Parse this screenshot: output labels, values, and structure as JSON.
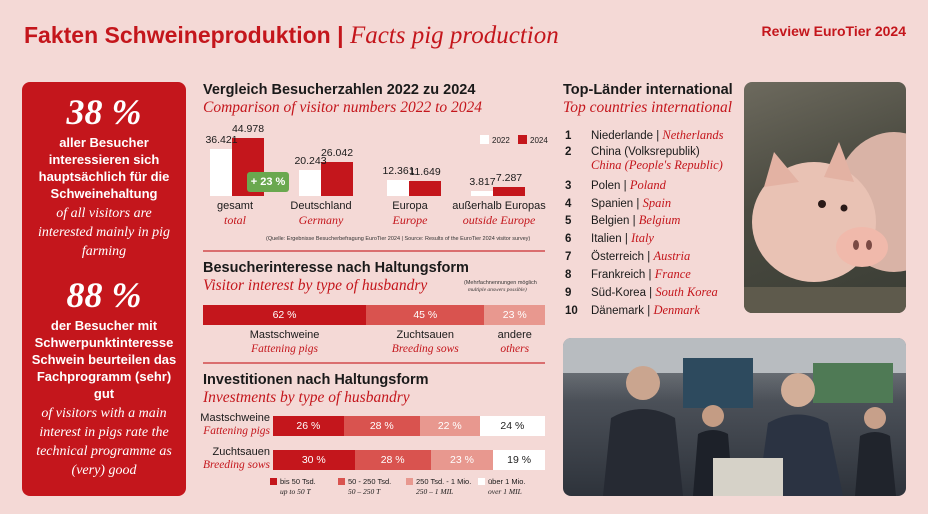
{
  "header": {
    "title_de": "Fakten Schweineproduktion",
    "title_sep": "|",
    "title_en": "Facts pig production",
    "review": "Review EuroTier 2024"
  },
  "left_box": {
    "stat1": {
      "value": "38 %",
      "text_de": "aller Besucher interessieren sich hauptsächlich für die Schweinehaltung",
      "text_en": "of all visitors are interested mainly in pig farming"
    },
    "stat2": {
      "value": "88 %",
      "text_de": "der Besucher mit Schwerpunktinteresse Schwein beurteilen das Fachprogramm (sehr) gut",
      "text_en": "of visitors with a main interest in pigs rate the technical programme as (very) good"
    }
  },
  "visitors": {
    "title_de": "Vergleich Besucherzahlen 2022 zu 2024",
    "title_en": "Comparison of visitor numbers 2022 to 2024",
    "legend": [
      "2022",
      "2024"
    ],
    "badge": "+ 23 %",
    "source": "(Quelle: Ergebnisse Besucherbefragung EuroTier 2024 | Source: Results of the EuroTier 2024 visitor survey)",
    "groups": [
      {
        "label_de": "gesamt",
        "label_en": "total",
        "v2022": "36.421",
        "v2024": "44.978"
      },
      {
        "label_de": "Deutschland",
        "label_en": "Germany",
        "v2022": "20.243",
        "v2024": "26.042"
      },
      {
        "label_de": "Europa",
        "label_en": "Europe",
        "v2022": "12.361",
        "v2024": "11.649"
      },
      {
        "label_de": "außerhalb Europas",
        "label_en": "outside Europe",
        "v2022": "3.817",
        "v2024": "7.287"
      }
    ]
  },
  "chart_data": [
    {
      "type": "bar",
      "title": "Vergleich Besucherzahlen 2022 zu 2024",
      "categories": [
        "gesamt",
        "Deutschland",
        "Europa",
        "außerhalb Europas"
      ],
      "series": [
        {
          "name": "2022",
          "values": [
            36421,
            20243,
            12361,
            3817
          ]
        },
        {
          "name": "2024",
          "values": [
            44978,
            26042,
            11649,
            7287
          ]
        }
      ]
    },
    {
      "type": "bar",
      "title": "Besucherinteresse nach Haltungsform",
      "categories": [
        "Mastschweine",
        "Zuchtsauen",
        "andere"
      ],
      "values": [
        62,
        45,
        23
      ]
    },
    {
      "type": "bar",
      "title": "Investitionen nach Haltungsform",
      "categories": [
        "Mastschweine",
        "Zuchtsauen"
      ],
      "series": [
        {
          "name": "bis 50 Tsd.",
          "values": [
            26,
            30
          ]
        },
        {
          "name": "50 - 250 Tsd.",
          "values": [
            28,
            28
          ]
        },
        {
          "name": "250 Tsd. - 1 Mio.",
          "values": [
            22,
            23
          ]
        },
        {
          "name": "über 1 Mio.",
          "values": [
            24,
            19
          ]
        }
      ]
    }
  ],
  "interest": {
    "title_de": "Besucherinteresse nach Haltungsform",
    "title_en": "Visitor interest by type of husbandry",
    "note_de": "(Mehrfachnennungen möglich",
    "note_en": "multiple answers possible)",
    "segments": [
      {
        "value": "62 %",
        "label_de": "Mastschweine",
        "label_en": "Fattening pigs",
        "color": "#c4161c"
      },
      {
        "value": "45 %",
        "label_de": "Zuchtsauen",
        "label_en": "Breeding sows",
        "color": "#d9534f"
      },
      {
        "value": "23 %",
        "label_de": "andere",
        "label_en": "others",
        "color": "#e8988f"
      }
    ]
  },
  "invest": {
    "title_de": "Investitionen nach Haltungsform",
    "title_en": "Investments by type of husbandry",
    "rows": [
      {
        "label_de": "Mastschweine",
        "label_en": "Fattening pigs",
        "values": [
          "26 %",
          "28 %",
          "22 %",
          "24 %"
        ]
      },
      {
        "label_de": "Zuchtsauen",
        "label_en": "Breeding sows",
        "values": [
          "30 %",
          "28 %",
          "23 %",
          "19 %"
        ]
      }
    ],
    "legend": [
      {
        "de": "bis 50 Tsd.",
        "en": "up to 50 T",
        "color": "#c4161c"
      },
      {
        "de": "50 - 250 Tsd.",
        "en": "50 – 250 T",
        "color": "#d9534f"
      },
      {
        "de": "250 Tsd. - 1 Mio.",
        "en": "250 – 1 MIL",
        "color": "#e8988f"
      },
      {
        "de": "über 1 Mio.",
        "en": "over 1 MIL",
        "color": "#ffffff"
      }
    ]
  },
  "countries": {
    "title_de": "Top-Länder international",
    "title_en": "Top countries international",
    "items": [
      {
        "rank": "1",
        "de": "Niederlande",
        "en": "Netherlands"
      },
      {
        "rank": "2",
        "de": "China (Volksrepublik)",
        "en": "China (People's Republic)"
      },
      {
        "rank": "3",
        "de": "Polen",
        "en": "Poland"
      },
      {
        "rank": "4",
        "de": "Spanien",
        "en": "Spain"
      },
      {
        "rank": "5",
        "de": "Belgien",
        "en": "Belgium"
      },
      {
        "rank": "6",
        "de": "Italien",
        "en": "Italy"
      },
      {
        "rank": "7",
        "de": "Österreich",
        "en": "Austria"
      },
      {
        "rank": "8",
        "de": "Frankreich",
        "en": "France"
      },
      {
        "rank": "9",
        "de": "Süd-Korea",
        "en": "South Korea"
      },
      {
        "rank": "10",
        "de": "Dänemark",
        "en": "Denmark"
      }
    ]
  },
  "colors": {
    "accent": "#c4161c",
    "background": "#f4d9d6",
    "badge": "#6aa84f"
  }
}
